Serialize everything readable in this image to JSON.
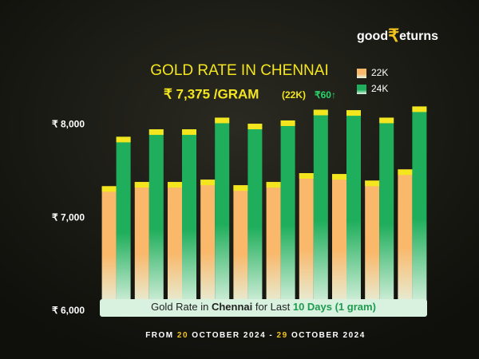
{
  "logo": {
    "left": "good",
    "symbol": "₹",
    "right": "eturns"
  },
  "chart_data": {
    "type": "bar",
    "title": "GOLD RATE IN CHENNAI",
    "price": "₹ 7,375 /GRAM",
    "price_karat": "(22K)",
    "change": "₹60↑",
    "categories": [
      null,
      null,
      null,
      null,
      null,
      null,
      null,
      null,
      null,
      null
    ],
    "series": [
      {
        "name": "22K",
        "color": "#f9b86a",
        "values": [
          7340,
          7385,
          7385,
          7410,
          7350,
          7385,
          7480,
          7470,
          7400,
          7520
        ]
      },
      {
        "name": "24K",
        "color": "#1fae5b",
        "values": [
          7870,
          7950,
          7950,
          8075,
          8010,
          8045,
          8160,
          8155,
          8075,
          8195
        ]
      }
    ],
    "ylim": [
      6000,
      8250
    ],
    "yticks": [
      {
        "value": 6000,
        "label": "₹ 6,000"
      },
      {
        "value": 7000,
        "label": "₹ 7,000"
      },
      {
        "value": 8000,
        "label": "₹ 8,000"
      }
    ],
    "grid": false,
    "legend": "top-right",
    "cap_color": "#f3e51e",
    "caption": [
      "Gold Rate in ",
      "Chennai",
      " for Last ",
      "10 Days (1 gram)"
    ],
    "footnote": [
      "FROM ",
      "20",
      " OCTOBER 2024 - ",
      "29",
      " OCTOBER 2024"
    ]
  }
}
